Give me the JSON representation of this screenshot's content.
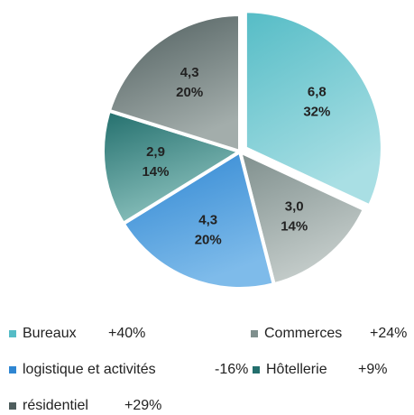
{
  "chart_data": {
    "type": "pie",
    "categories": [
      "Bureaux",
      "Commerces",
      "logistique et activités",
      "Hôtellerie",
      "résidentiel"
    ],
    "values": [
      6.8,
      3.0,
      4.3,
      2.9,
      4.3
    ],
    "value_labels": [
      "6,8",
      "3,0",
      "4,3",
      "2,9",
      "4,3"
    ],
    "percent_labels": [
      "32%",
      "14%",
      "20%",
      "14%",
      "20%"
    ],
    "change_labels": [
      "+40%",
      "+24%",
      "-16%",
      "+9%",
      "+29%"
    ],
    "colors": [
      [
        "#55bcc6",
        "#a9dfe4"
      ],
      [
        "#7f8f8d",
        "#c5cdcb"
      ],
      [
        "#2f86d2",
        "#7ebbea"
      ],
      [
        "#236f6d",
        "#8cc2be"
      ],
      [
        "#4e5d5d",
        "#a3adab"
      ]
    ],
    "legend": "bottom"
  }
}
